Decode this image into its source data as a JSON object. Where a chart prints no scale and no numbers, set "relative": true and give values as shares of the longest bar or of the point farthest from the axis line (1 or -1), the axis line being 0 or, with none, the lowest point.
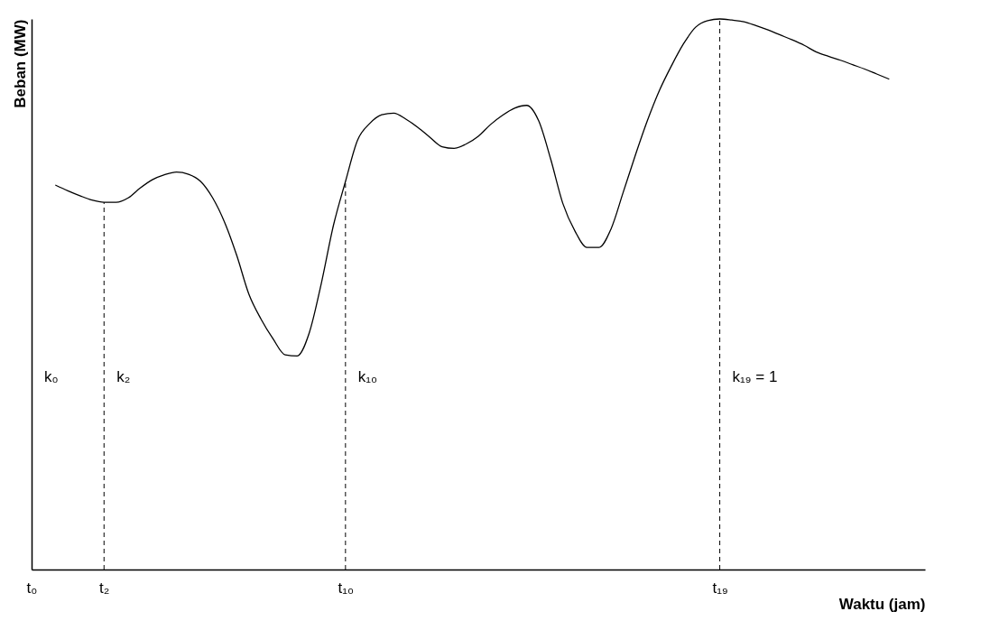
{
  "chart_data": {
    "type": "line",
    "relative": true,
    "xlabel": "Waktu (jam)",
    "ylabel": "Beban (MW)",
    "categories": [
      "t₀",
      null,
      null,
      null,
      null,
      null,
      "t₂",
      null,
      null,
      null,
      null,
      null,
      null,
      null,
      null,
      null,
      null,
      null,
      null,
      null,
      null,
      null,
      null,
      null,
      null,
      null,
      "t₁₀",
      null,
      null,
      null,
      null,
      null,
      null,
      null,
      null,
      null,
      null,
      null,
      null,
      null,
      null,
      null,
      null,
      null,
      null,
      null,
      null,
      null,
      null,
      null,
      null,
      null,
      null,
      null,
      null,
      null,
      null,
      "t₁₉",
      null,
      null,
      null,
      null,
      null,
      null,
      null,
      null,
      null,
      null,
      null,
      null,
      null,
      null,
      null,
      null,
      null
    ],
    "grid": false,
    "marker": "none",
    "line_style": "solid",
    "series": [
      {
        "color": "#000000",
        "values": [
          null,
          null,
          0.698,
          0.688,
          0.679,
          0.671,
          0.667,
          0.667,
          0.675,
          0.693,
          0.708,
          0.717,
          0.722,
          0.718,
          0.705,
          0.675,
          0.63,
          0.57,
          0.5,
          0.455,
          0.419,
          0.39,
          0.388,
          0.43,
          0.52,
          0.625,
          0.705,
          0.78,
          0.81,
          0.826,
          0.829,
          0.818,
          0.803,
          0.785,
          0.768,
          0.765,
          0.773,
          0.787,
          0.808,
          0.825,
          0.838,
          0.843,
          0.815,
          0.745,
          0.665,
          0.615,
          0.585,
          0.585,
          0.619,
          0.685,
          0.752,
          0.815,
          0.87,
          0.915,
          0.955,
          0.985,
          0.997,
          1.0,
          0.998,
          0.995,
          0.988,
          0.98,
          0.971,
          0.962,
          0.952,
          0.94,
          0.932,
          0.925,
          0.917,
          0.909,
          0.9,
          0.891,
          null,
          null,
          null
        ]
      }
    ],
    "ref_lines": [
      {
        "axis": "x",
        "value": "t₂",
        "line_style": "dashed"
      },
      {
        "axis": "x",
        "value": "t₁₀",
        "line_style": "dashed"
      },
      {
        "axis": "x",
        "value": "t₁₉",
        "line_style": "dashed"
      }
    ],
    "annotations": [
      "k₀",
      "k₂",
      "k₁₀",
      "k₁₉ = 1"
    ]
  }
}
